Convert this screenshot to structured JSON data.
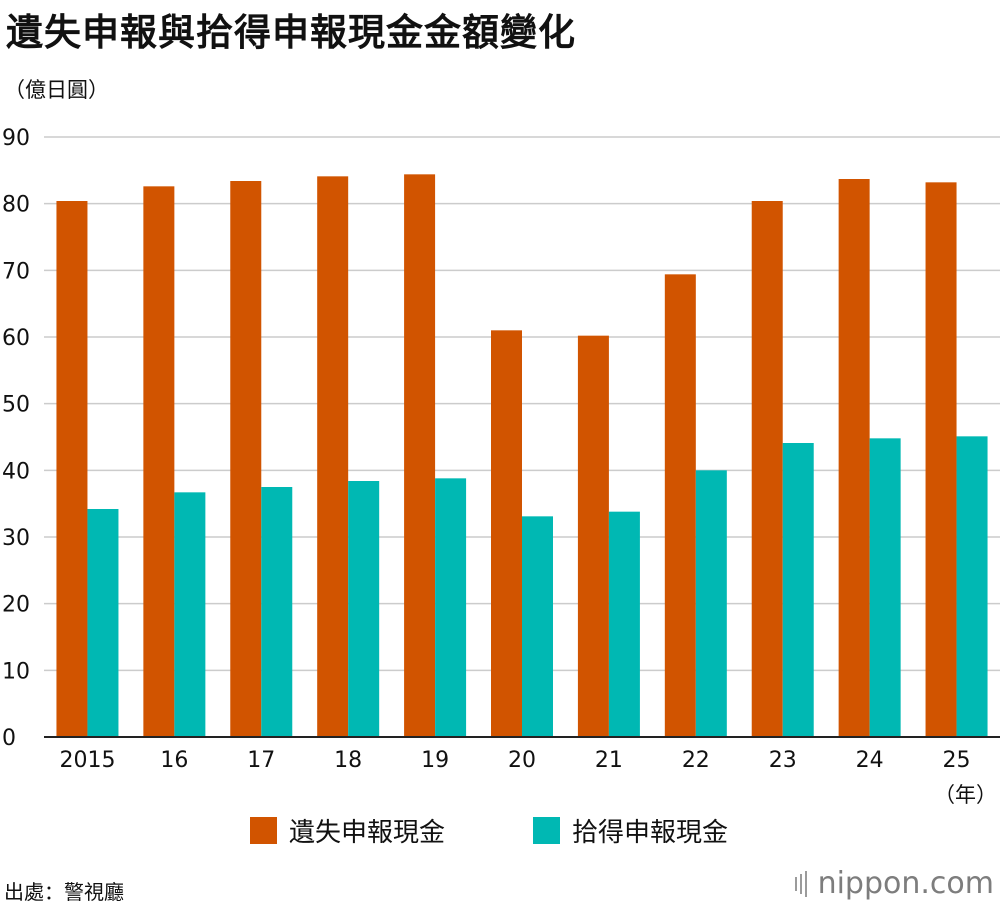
{
  "title": "遺失申報與拾得申報現金金額變化",
  "unit_label": "（億日圓）",
  "x_unit_label": "（年）",
  "source": "出處：警視廳",
  "brand": "nippon.com",
  "colors": {
    "lost": "#d15400",
    "found": "#00b8b3",
    "grid": "#cccccc",
    "axis": "#222222"
  },
  "chart_data": {
    "type": "bar",
    "categories": [
      "2015",
      "16",
      "17",
      "18",
      "19",
      "20",
      "21",
      "22",
      "23",
      "24",
      "25"
    ],
    "series": [
      {
        "name": "遺失申報現金",
        "values": [
          80.4,
          82.6,
          83.4,
          84.1,
          84.4,
          61.0,
          60.2,
          69.4,
          80.4,
          83.7,
          83.2
        ]
      },
      {
        "name": "拾得申報現金",
        "values": [
          34.2,
          36.7,
          37.5,
          38.4,
          38.8,
          33.1,
          33.8,
          40.0,
          44.1,
          44.8,
          45.1
        ]
      }
    ],
    "ylim": [
      0,
      90
    ],
    "yticks": [
      0,
      10,
      20,
      30,
      40,
      50,
      60,
      70,
      80,
      90
    ],
    "grid": true,
    "legend": "bottom"
  }
}
